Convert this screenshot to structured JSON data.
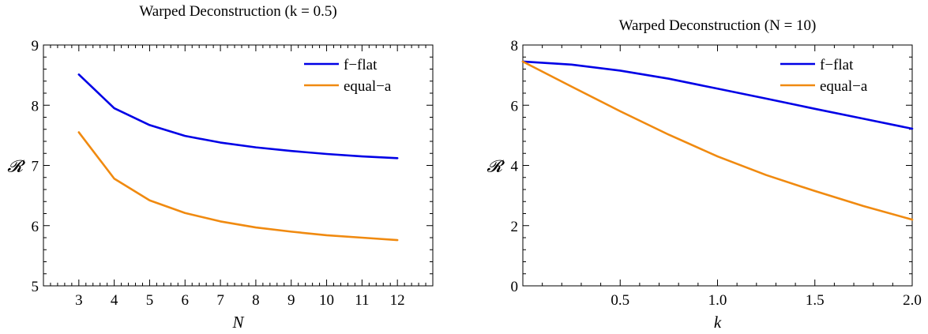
{
  "chart_data": [
    {
      "type": "line",
      "title": "Warped Deconstruction (k = 0.5)",
      "xlabel": "N",
      "ylabel": "𝓡",
      "xlim": [
        2,
        13
      ],
      "ylim": [
        5,
        9
      ],
      "xticks": [
        3,
        4,
        5,
        6,
        7,
        8,
        9,
        10,
        11,
        12
      ],
      "xtick_labels": [
        "3",
        "4",
        "5",
        "6",
        "7",
        "8",
        "9",
        "10",
        "11",
        "12"
      ],
      "yticks": [
        5,
        6,
        7,
        8,
        9
      ],
      "ytick_labels": [
        "5",
        "6",
        "7",
        "8",
        "9"
      ],
      "x": [
        3,
        4,
        5,
        6,
        7,
        8,
        9,
        10,
        11,
        12
      ],
      "legend_position": "top-right",
      "grid": false,
      "series": [
        {
          "name": "f−flat",
          "color": "#0000e6",
          "values": [
            8.51,
            7.95,
            7.67,
            7.49,
            7.38,
            7.3,
            7.24,
            7.19,
            7.15,
            7.12
          ]
        },
        {
          "name": "equal−a",
          "color": "#f08a10",
          "values": [
            7.55,
            6.78,
            6.42,
            6.21,
            6.07,
            5.97,
            5.9,
            5.84,
            5.8,
            5.76
          ]
        }
      ]
    },
    {
      "type": "line",
      "title": "Warped Deconstruction (N = 10)",
      "xlabel": "k",
      "ylabel": "𝓡",
      "xlim": [
        0,
        2
      ],
      "ylim": [
        0,
        8
      ],
      "xticks": [
        0.5,
        1.0,
        1.5,
        2.0
      ],
      "xtick_labels": [
        "0.5",
        "1.0",
        "1.5",
        "2.0"
      ],
      "yticks": [
        0,
        2,
        4,
        6,
        8
      ],
      "ytick_labels": [
        "0",
        "2",
        "4",
        "6",
        "8"
      ],
      "x": [
        0,
        0.25,
        0.5,
        0.75,
        1.0,
        1.25,
        1.5,
        1.75,
        2.0
      ],
      "legend_position": "top-right",
      "grid": false,
      "series": [
        {
          "name": "f−flat",
          "color": "#0000e6",
          "values": [
            7.45,
            7.35,
            7.15,
            6.88,
            6.55,
            6.22,
            5.88,
            5.55,
            5.22
          ]
        },
        {
          "name": "equal−a",
          "color": "#f08a10",
          "values": [
            7.45,
            6.62,
            5.8,
            5.02,
            4.3,
            3.68,
            3.15,
            2.65,
            2.2
          ]
        }
      ]
    }
  ]
}
